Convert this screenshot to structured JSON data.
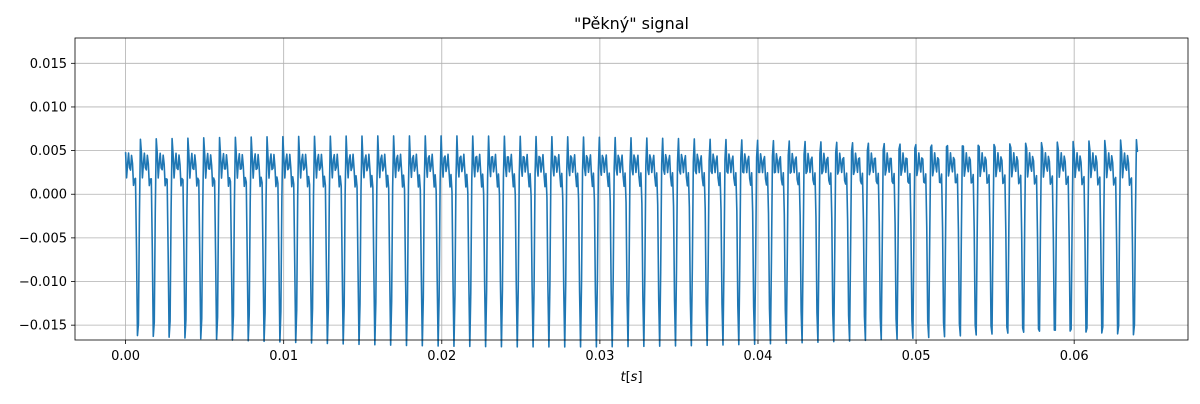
{
  "chart_data": {
    "type": "line",
    "title": "\"Pěkný\" signal",
    "xlabel": "t[s]",
    "ylabel": "",
    "xlim": [
      -0.0032,
      0.0672
    ],
    "ylim": [
      -0.0167,
      0.0179
    ],
    "x_ticks": [
      0.0,
      0.01,
      0.02,
      0.03,
      0.04,
      0.05,
      0.06
    ],
    "x_tick_labels": [
      "0.00",
      "0.01",
      "0.02",
      "0.03",
      "0.04",
      "0.05",
      "0.06"
    ],
    "y_ticks": [
      -0.015,
      -0.01,
      -0.005,
      0.0,
      0.005,
      0.01,
      0.015
    ],
    "y_tick_labels": [
      "−0.015",
      "−0.010",
      "−0.005",
      "0.000",
      "0.005",
      "0.010",
      "0.015"
    ],
    "grid": true,
    "legend": false,
    "series": [
      {
        "color": "#1f77b4",
        "x_start": 0.0,
        "x_end": 0.064,
        "samples": 1024,
        "fundamental_hz": 1000,
        "harmonics": [
          {
            "harmonic": 1,
            "amplitude": 0.0063,
            "phase_deg": 0
          },
          {
            "harmonic": 2,
            "amplitude": 0.0048,
            "phase_deg": 80
          },
          {
            "harmonic": 3,
            "amplitude": 0.0038,
            "phase_deg": 150
          },
          {
            "harmonic": 4,
            "amplitude": 0.0028,
            "phase_deg": 220
          }
        ]
      }
    ]
  },
  "colors": {
    "axes_edge": "#000000",
    "grid": "#b0b0b0",
    "line": "#1f77b4",
    "background": "#ffffff"
  }
}
